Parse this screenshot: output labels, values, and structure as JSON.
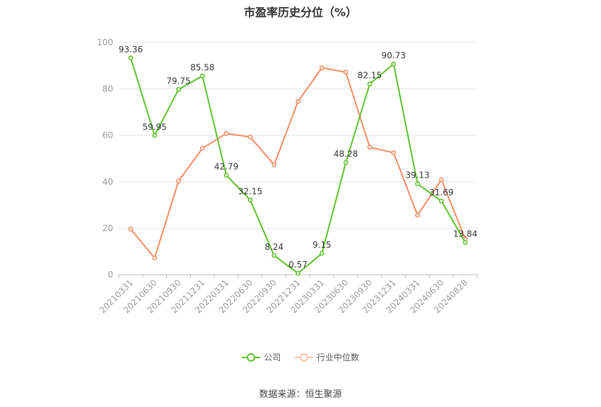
{
  "title": "市盈率历史分位（%）",
  "source": "数据来源：恒生聚源",
  "colors": {
    "company": "#5dc12b",
    "industry": "#f28c62",
    "grid": "#e6e6ee",
    "axis": "#999999"
  },
  "chart_data": {
    "type": "line",
    "title": "市盈率历史分位（%）",
    "xlabel": "",
    "ylabel": "",
    "ylim": [
      0,
      100
    ],
    "yticks": [
      0,
      20,
      40,
      60,
      80,
      100
    ],
    "grid": true,
    "legend_position": "bottom",
    "categories": [
      "20210331",
      "20210630",
      "20210930",
      "20211231",
      "20220331",
      "20220630",
      "20220930",
      "20221231",
      "20230331",
      "20230630",
      "20230930",
      "20231231",
      "20240331",
      "20240630",
      "20240828"
    ],
    "series": [
      {
        "name": "公司",
        "color": "#5dc12b",
        "labeled": true,
        "values": [
          93.36,
          59.95,
          79.75,
          85.58,
          42.79,
          32.15,
          8.24,
          0.57,
          9.15,
          48.28,
          82.15,
          90.73,
          39.13,
          31.69,
          13.84
        ]
      },
      {
        "name": "行业中位数",
        "color": "#f28c62",
        "labeled": false,
        "values": [
          19.6,
          7.2,
          40.3,
          54.4,
          60.8,
          59.3,
          47.3,
          74.6,
          89.1,
          87.2,
          54.9,
          52.5,
          25.6,
          40.9,
          15.3
        ]
      }
    ]
  }
}
